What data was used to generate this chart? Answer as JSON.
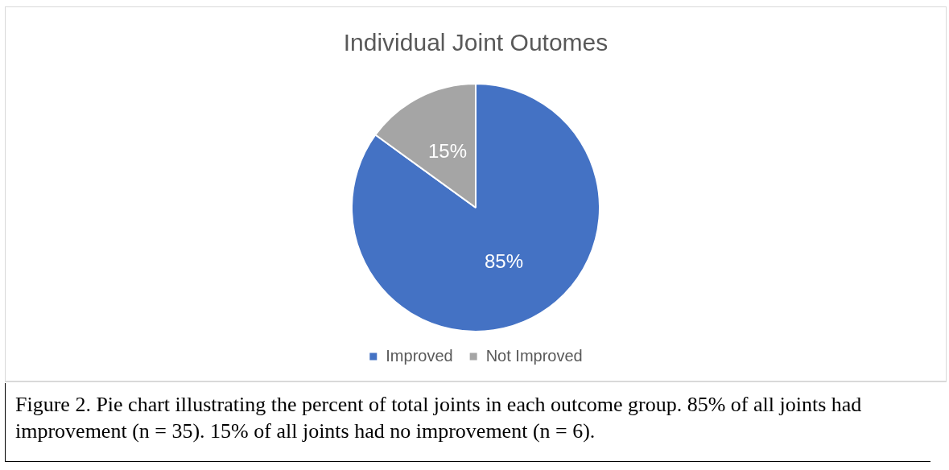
{
  "chart_data": {
    "type": "pie",
    "title": "Individual Joint Outomes",
    "categories": [
      "Improved",
      "Not Improved"
    ],
    "values": [
      85,
      15
    ],
    "colors": [
      "#4472c4",
      "#a5a5a5"
    ],
    "value_labels": [
      "85%",
      "15%"
    ],
    "legend": "bottom",
    "annotations": [
      "Figure 2. Pie chart illustrating the percent of total joints in each outcome group. 85% of all joints had improvement (n = 35). 15% of all joints had no improvement (n = 6)."
    ]
  }
}
